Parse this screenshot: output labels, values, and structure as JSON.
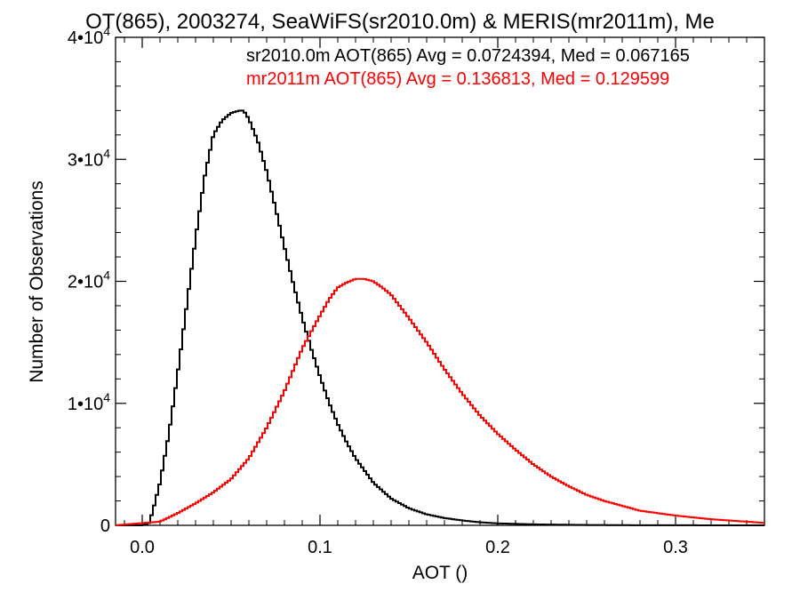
{
  "chart_data": {
    "type": "line",
    "title": "OT(865), 2003274, SeaWiFS(sr2010.0m) & MERIS(mr2011m), Me",
    "xlabel": "AOT ()",
    "ylabel": "Number of Observations",
    "xlim": [
      -0.015,
      0.35
    ],
    "ylim": [
      0,
      40000
    ],
    "x_ticks": [
      {
        "value": 0.0,
        "label": "0.0"
      },
      {
        "value": 0.1,
        "label": "0.1"
      },
      {
        "value": 0.2,
        "label": "0.2"
      },
      {
        "value": 0.3,
        "label": "0.3"
      }
    ],
    "y_ticks": [
      {
        "value": 0,
        "label": "0",
        "mantissa": "0",
        "exponent": ""
      },
      {
        "value": 10000,
        "label": "1•10^4",
        "mantissa": "1•10",
        "exponent": "4"
      },
      {
        "value": 20000,
        "label": "2•10^4",
        "mantissa": "2•10",
        "exponent": "4"
      },
      {
        "value": 30000,
        "label": "3•10^4",
        "mantissa": "3•10",
        "exponent": "4"
      },
      {
        "value": 40000,
        "label": "4•10^4",
        "mantissa": "4•10",
        "exponent": "4"
      }
    ],
    "grid": false,
    "legend_position": "top-right",
    "series": [
      {
        "color": "#000000",
        "label": "sr2010.0m AOT(865) Avg = 0.0724394, Med = 0.067165",
        "x": [
          -0.015,
          0.0,
          0.004,
          0.006,
          0.01,
          0.015,
          0.02,
          0.025,
          0.03,
          0.035,
          0.04,
          0.045,
          0.05,
          0.055,
          0.057,
          0.06,
          0.065,
          0.07,
          0.075,
          0.08,
          0.085,
          0.09,
          0.095,
          0.1,
          0.105,
          0.11,
          0.115,
          0.12,
          0.13,
          0.14,
          0.15,
          0.16,
          0.17,
          0.18,
          0.19,
          0.2,
          0.22,
          0.25,
          0.28,
          0.31,
          0.35
        ],
        "y": [
          0,
          0,
          200,
          1200,
          3500,
          7500,
          12500,
          18000,
          23500,
          28500,
          32000,
          33200,
          33800,
          34000,
          34000,
          33300,
          31500,
          29000,
          26000,
          22800,
          19800,
          17000,
          14500,
          12200,
          10100,
          8300,
          6800,
          5500,
          3500,
          2200,
          1400,
          900,
          600,
          400,
          250,
          160,
          80,
          30,
          10,
          5,
          0
        ]
      },
      {
        "color": "#ff0000",
        "label": "mr2011m AOT(865) Avg = 0.136813, Med = 0.129599",
        "x": [
          -0.015,
          0.01,
          0.02,
          0.03,
          0.04,
          0.05,
          0.06,
          0.07,
          0.08,
          0.09,
          0.1,
          0.105,
          0.11,
          0.115,
          0.12,
          0.125,
          0.13,
          0.135,
          0.14,
          0.15,
          0.16,
          0.17,
          0.18,
          0.19,
          0.2,
          0.21,
          0.22,
          0.23,
          0.24,
          0.25,
          0.26,
          0.27,
          0.28,
          0.3,
          0.32,
          0.34,
          0.35
        ],
        "y": [
          0,
          300,
          1000,
          1800,
          2700,
          3800,
          5500,
          8000,
          11000,
          14500,
          17200,
          18500,
          19500,
          19900,
          20200,
          20200,
          20000,
          19500,
          18900,
          17000,
          15000,
          12800,
          10800,
          9000,
          7500,
          6200,
          5000,
          4000,
          3200,
          2500,
          2000,
          1600,
          1200,
          800,
          500,
          300,
          200
        ]
      }
    ]
  }
}
